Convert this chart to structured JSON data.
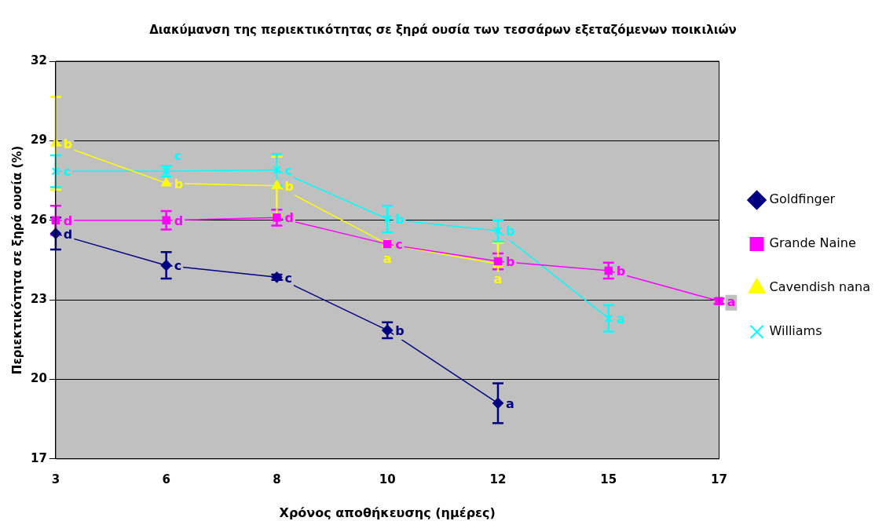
{
  "chart_data": {
    "type": "line",
    "title": "Διακύμανση της περιεκτικότητας σε ξηρά ουσία των τεσσάρων εξεταζόμενων ποικιλιών",
    "xlabel": "Χρόνος αποθήκευσης (ημέρες)",
    "ylabel": "Περιεκτικότητα σε ξηρά ουσία (%)",
    "categories": [
      "3",
      "6",
      "8",
      "10",
      "12",
      "15",
      "17"
    ],
    "ylim": [
      17,
      32
    ],
    "yticks": [
      17,
      20,
      23,
      26,
      29,
      32
    ],
    "grid": "y",
    "legend": "right",
    "series": [
      {
        "name": "Goldfinger",
        "color": "#000080",
        "marker": "diamond",
        "values": [
          25.5,
          24.3,
          23.85,
          21.85,
          19.1,
          null,
          null
        ],
        "errors": [
          0.6,
          0.5,
          0.1,
          0.3,
          0.75,
          null,
          null
        ],
        "value_labels": [
          "d",
          "c",
          "c",
          "b",
          "a",
          null,
          null
        ]
      },
      {
        "name": "Grande Naine",
        "color": "#ff00ff",
        "marker": "square",
        "values": [
          26,
          26,
          26.1,
          25.1,
          24.45,
          24.1,
          22.95
        ],
        "errors": [
          0.55,
          0.35,
          0.3,
          0.1,
          0.3,
          0.3,
          0.1
        ],
        "value_labels": [
          "d",
          "d",
          "d",
          "c",
          "b",
          "b",
          "a"
        ]
      },
      {
        "name": "Cavendish nana",
        "color": "#ffff00",
        "marker": "triangle",
        "values": [
          28.9,
          27.4,
          27.3,
          25.1,
          24.35,
          null,
          null
        ],
        "errors": [
          1.75,
          null,
          1.1,
          0.1,
          0.8,
          null,
          null
        ],
        "value_labels": [
          "b",
          "b",
          "b",
          "a",
          "a",
          null,
          null
        ]
      },
      {
        "name": "Williams",
        "color": "#00ffff",
        "marker": "cross",
        "values": [
          27.85,
          27.85,
          27.9,
          26.05,
          25.6,
          22.3,
          null
        ],
        "errors": [
          0.6,
          0.2,
          0.6,
          0.5,
          0.4,
          0.5,
          null
        ],
        "value_labels": [
          "c",
          "c",
          "c",
          "b",
          "b",
          "a",
          null
        ]
      }
    ]
  }
}
